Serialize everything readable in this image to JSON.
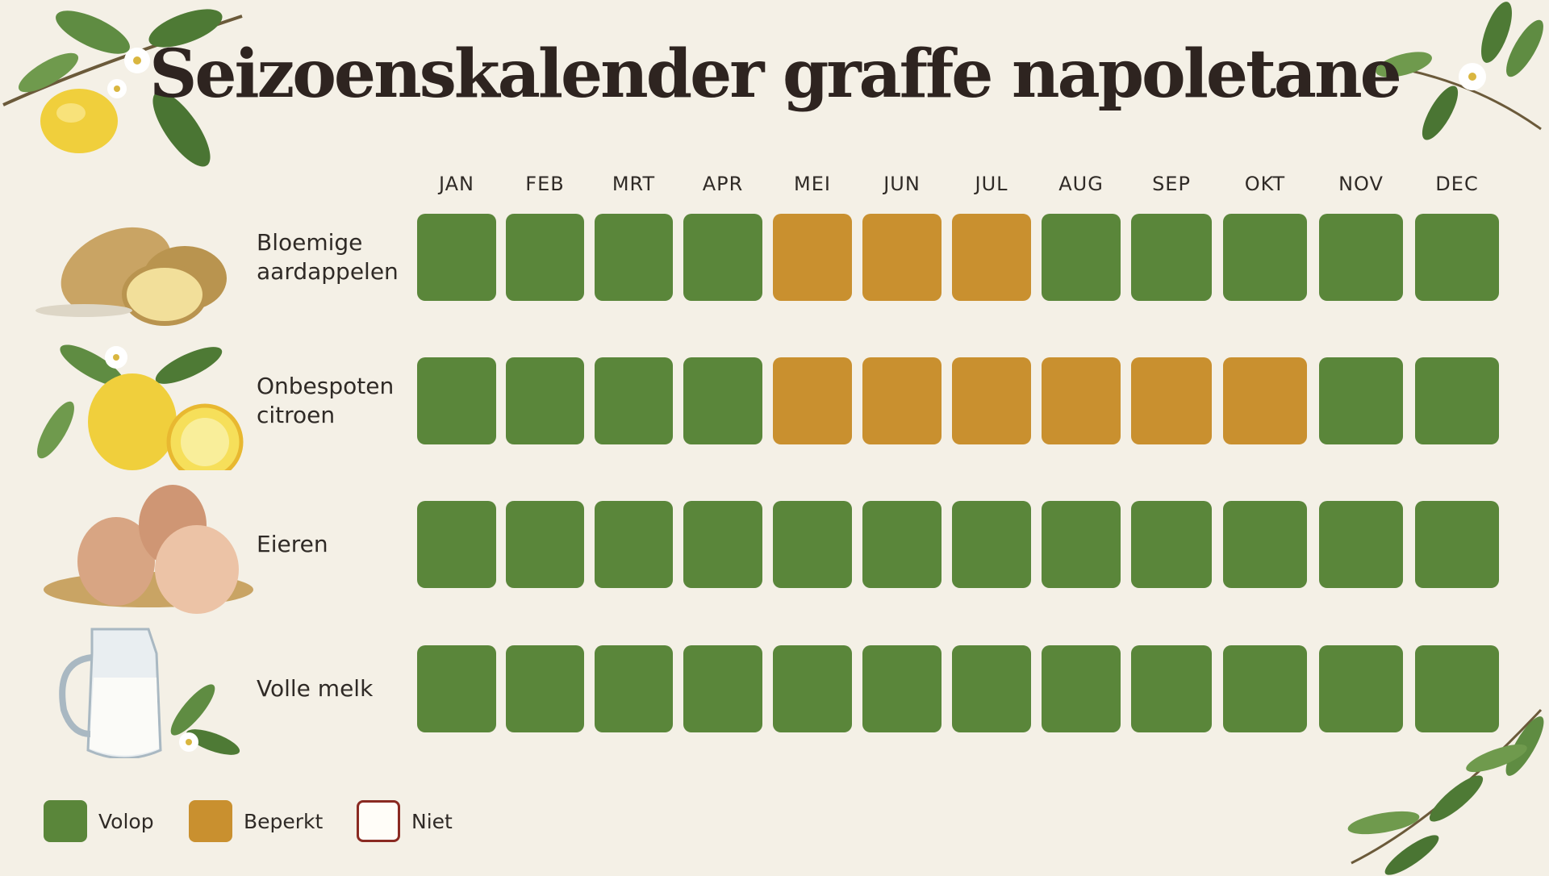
{
  "title": "Seizoenskalender graffe napoletane",
  "months": [
    "JAN",
    "FEB",
    "MRT",
    "APR",
    "MEI",
    "JUN",
    "JUL",
    "AUG",
    "SEP",
    "OKT",
    "NOV",
    "DEC"
  ],
  "statuses": {
    "volop": {
      "label": "Volop",
      "color": "#5a863a"
    },
    "beperkt": {
      "label": "Beperkt",
      "color": "#c9902f"
    },
    "niet": {
      "label": "Niet",
      "color": "#fffdf8",
      "border": "#8a2a22"
    }
  },
  "ingredients": [
    {
      "name": "Bloemige\naardappelen",
      "icon": "potato-icon",
      "availability": [
        "volop",
        "volop",
        "volop",
        "volop",
        "beperkt",
        "beperkt",
        "beperkt",
        "volop",
        "volop",
        "volop",
        "volop",
        "volop"
      ]
    },
    {
      "name": "Onbespoten\ncitroen",
      "icon": "lemon-icon",
      "availability": [
        "volop",
        "volop",
        "volop",
        "volop",
        "beperkt",
        "beperkt",
        "beperkt",
        "beperkt",
        "beperkt",
        "beperkt",
        "volop",
        "volop"
      ]
    },
    {
      "name": "Eieren",
      "icon": "eggs-icon",
      "availability": [
        "volop",
        "volop",
        "volop",
        "volop",
        "volop",
        "volop",
        "volop",
        "volop",
        "volop",
        "volop",
        "volop",
        "volop"
      ]
    },
    {
      "name": "Volle melk",
      "icon": "milk-jug-icon",
      "availability": [
        "volop",
        "volop",
        "volop",
        "volop",
        "volop",
        "volop",
        "volop",
        "volop",
        "volop",
        "volop",
        "volop",
        "volop"
      ]
    }
  ],
  "legend": [
    {
      "status": "volop",
      "label": "Volop"
    },
    {
      "status": "beperkt",
      "label": "Beperkt"
    },
    {
      "status": "niet",
      "label": "Niet"
    }
  ]
}
